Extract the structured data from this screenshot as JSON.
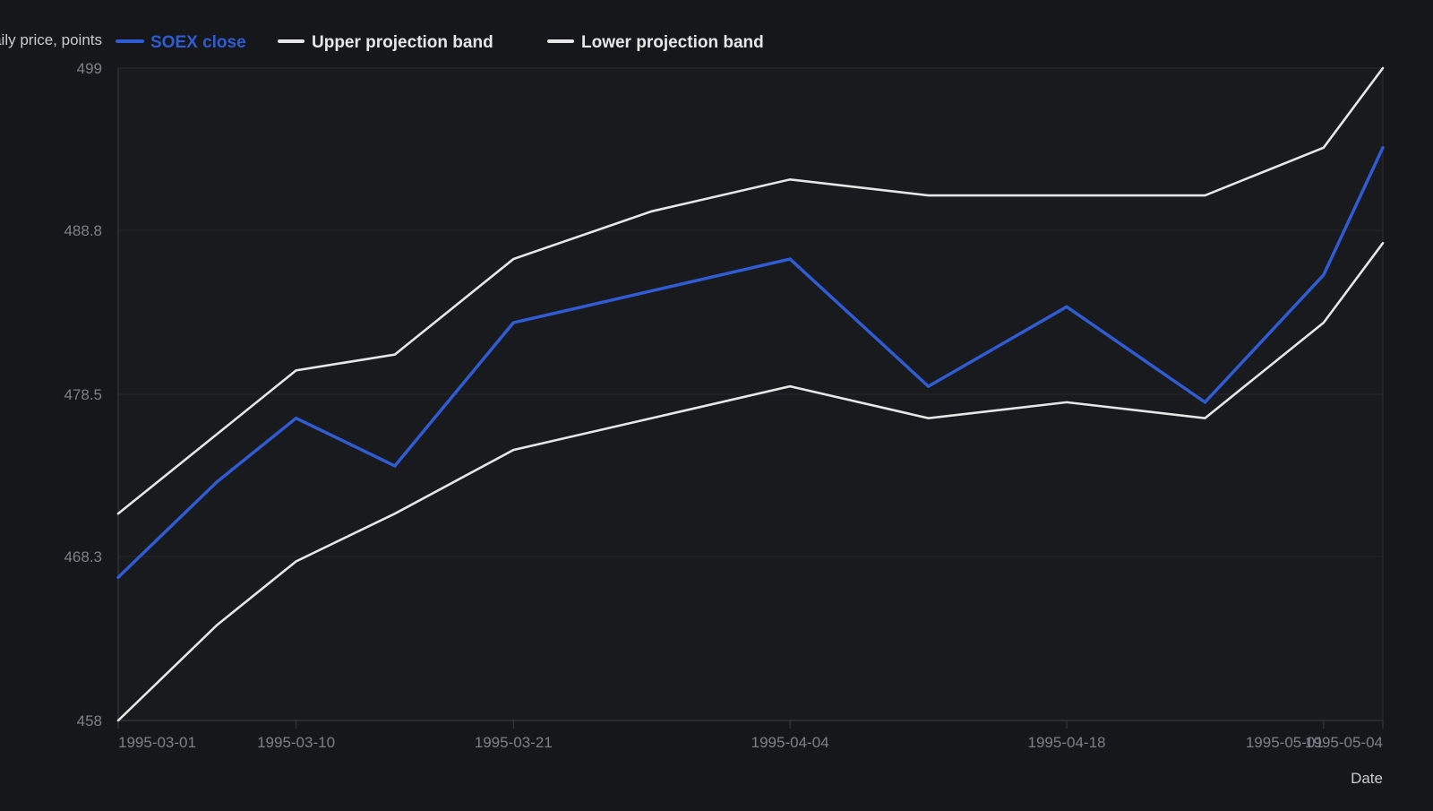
{
  "chart_data": {
    "type": "line",
    "ylabel": "Daily price, points",
    "xlabel": "Date",
    "ylim": [
      458,
      499
    ],
    "y_ticks": [
      "458",
      "468.3",
      "478.5",
      "488.8",
      "499"
    ],
    "x_ticks": [
      "1995-03-01",
      "1995-03-10",
      "1995-03-21",
      "1995-04-04",
      "1995-04-18",
      "1995-05-01",
      "1995-05-04"
    ],
    "x": [
      "1995-03-01",
      "1995-03-06",
      "1995-03-10",
      "1995-03-15",
      "1995-03-21",
      "1995-03-28",
      "1995-04-04",
      "1995-04-11",
      "1995-04-18",
      "1995-04-25",
      "1995-05-01",
      "1995-05-04"
    ],
    "grid": true,
    "legend_position": "top",
    "series": [
      {
        "name": "SOEX close",
        "color": "#2f5bd3",
        "values": [
          467.0,
          473.0,
          477.0,
          474.0,
          483.0,
          485.0,
          487.0,
          479.0,
          484.0,
          478.0,
          486.0,
          494.0
        ]
      },
      {
        "name": "Upper projection band",
        "color": "#e6e6e6",
        "values": [
          471.0,
          476.0,
          480.0,
          481.0,
          487.0,
          490.0,
          492.0,
          491.0,
          491.0,
          491.0,
          494.0,
          499.0
        ]
      },
      {
        "name": "Lower projection band",
        "color": "#e6e6e6",
        "values": [
          458.0,
          464.0,
          468.0,
          471.0,
          475.0,
          477.0,
          479.0,
          477.0,
          478.0,
          477.0,
          483.0,
          488.0
        ]
      }
    ]
  }
}
